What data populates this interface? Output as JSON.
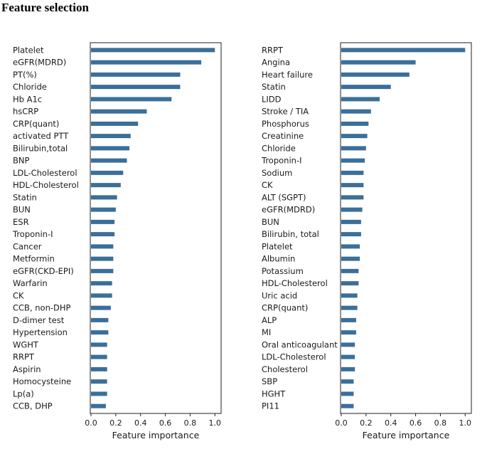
{
  "heading": "Feature selection",
  "chart_data": [
    {
      "type": "bar",
      "orientation": "horizontal",
      "title": "",
      "xlabel": "Feature importance",
      "ylabel": "",
      "xlim": [
        0,
        1.05
      ],
      "xticks": [
        "0.0",
        "0.2",
        "0.4",
        "0.6",
        "0.8",
        "1.0"
      ],
      "grid": false,
      "color": "#3a6f9a",
      "categories": [
        "Platelet",
        "eGFR(MDRD)",
        "PT(%)",
        "Chloride",
        "Hb A1c",
        "hsCRP",
        "CRP(quant)",
        "activated PTT",
        "Bilirubin,total",
        "BNP",
        "LDL-Cholesterol",
        "HDL-Cholesterol",
        "Statin",
        "BUN",
        "ESR",
        "Troponin-I",
        "Cancer",
        "Metformin",
        "eGFR(CKD-EPI)",
        "Warfarin",
        "CK",
        "CCB, non-DHP",
        "D-dimer test",
        "Hypertension",
        "WGHT",
        "RRPT",
        "Aspirin",
        "Homocysteine",
        "Lp(a)",
        "CCB, DHP"
      ],
      "values": [
        1.0,
        0.89,
        0.72,
        0.72,
        0.65,
        0.45,
        0.38,
        0.32,
        0.31,
        0.29,
        0.26,
        0.24,
        0.21,
        0.2,
        0.19,
        0.19,
        0.18,
        0.18,
        0.18,
        0.17,
        0.17,
        0.16,
        0.14,
        0.14,
        0.13,
        0.13,
        0.13,
        0.13,
        0.13,
        0.12
      ]
    },
    {
      "type": "bar",
      "orientation": "horizontal",
      "title": "",
      "xlabel": "Feature importance",
      "ylabel": "",
      "xlim": [
        0,
        1.05
      ],
      "xticks": [
        "0.0",
        "0.2",
        "0.4",
        "0.6",
        "0.8",
        "1.0"
      ],
      "grid": false,
      "color": "#3a6f9a",
      "categories": [
        "RRPT",
        "Angina",
        "Heart failure",
        "Statin",
        "LIDD",
        "Stroke / TIA",
        "Phosphorus",
        "Creatinine",
        "Chloride",
        "Troponin-I",
        "Sodium",
        "CK",
        "ALT (SGPT)",
        "eGFR(MDRD)",
        "BUN",
        "Bilirubin, total",
        "Platelet",
        "Albumin",
        "Potassium",
        "HDL-Cholesterol",
        "Uric acid",
        "CRP(quant)",
        "ALP",
        "MI",
        "Oral anticoagulant",
        "LDL-Cholesterol",
        "Cholesterol",
        "SBP",
        "HGHT",
        "PI11"
      ],
      "values": [
        1.0,
        0.6,
        0.55,
        0.4,
        0.31,
        0.24,
        0.22,
        0.21,
        0.2,
        0.19,
        0.18,
        0.18,
        0.18,
        0.17,
        0.16,
        0.16,
        0.15,
        0.15,
        0.14,
        0.14,
        0.13,
        0.13,
        0.12,
        0.12,
        0.11,
        0.11,
        0.11,
        0.1,
        0.1,
        0.1
      ]
    }
  ]
}
